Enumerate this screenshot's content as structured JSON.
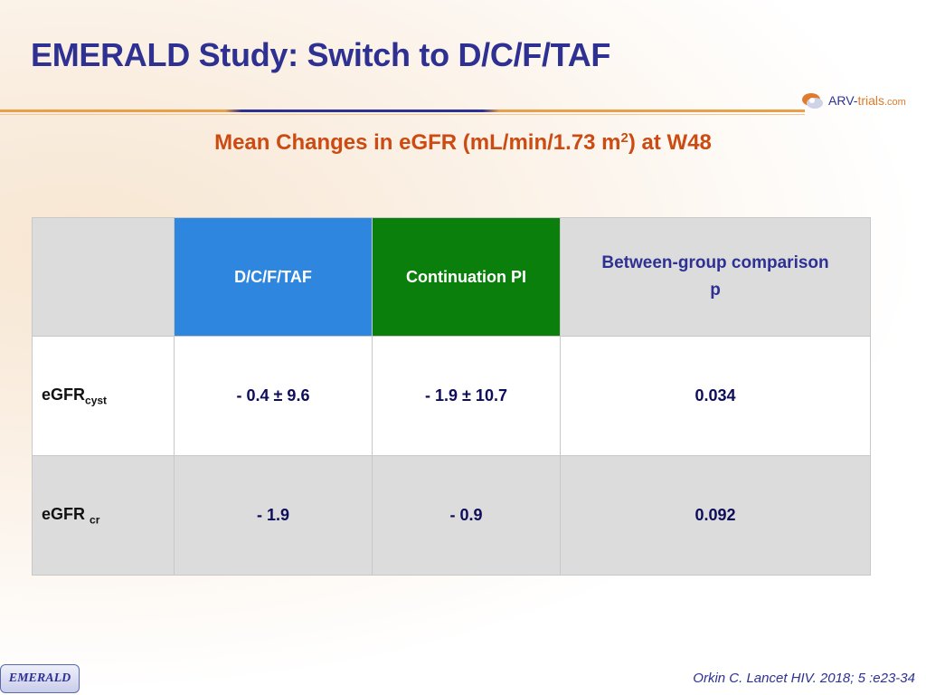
{
  "slide": {
    "title": "EMERALD Study: Switch to D/C/F/TAF",
    "subtitle_pre": "Mean Changes in eGFR (mL/min/1.73 m",
    "subtitle_sup": "2",
    "subtitle_post": ") at W48"
  },
  "logo": {
    "text_a": "ARV-",
    "text_b": "trials",
    "text_c": ".com"
  },
  "table": {
    "headers": [
      "",
      "D/C/F/TAF",
      "Continuation PI",
      "Between-group comparison p"
    ],
    "header_compare_line1": "Between-group comparison",
    "header_compare_line2": "p",
    "rows": [
      {
        "label": "eGFR",
        "label_sub": "cyst",
        "dcftaf": "- 0.4 ± 9.6",
        "continuation": "- 1.9 ± 10.7",
        "p": "0.034"
      },
      {
        "label": "eGFR ",
        "label_sub": "cr",
        "dcftaf": "- 1.9",
        "continuation": "- 0.9",
        "p": "0.092"
      }
    ]
  },
  "footer": {
    "reference": "Orkin C. Lancet HIV. 2018; 5 :e23-34",
    "study_tag": "EMERALD"
  },
  "colors": {
    "title": "#2e3192",
    "subtitle": "#cc4b12",
    "dcftaf_header": "#2e86de",
    "continuation_header": "#0b7f0b",
    "gray_cell": "#dcdcdc"
  }
}
